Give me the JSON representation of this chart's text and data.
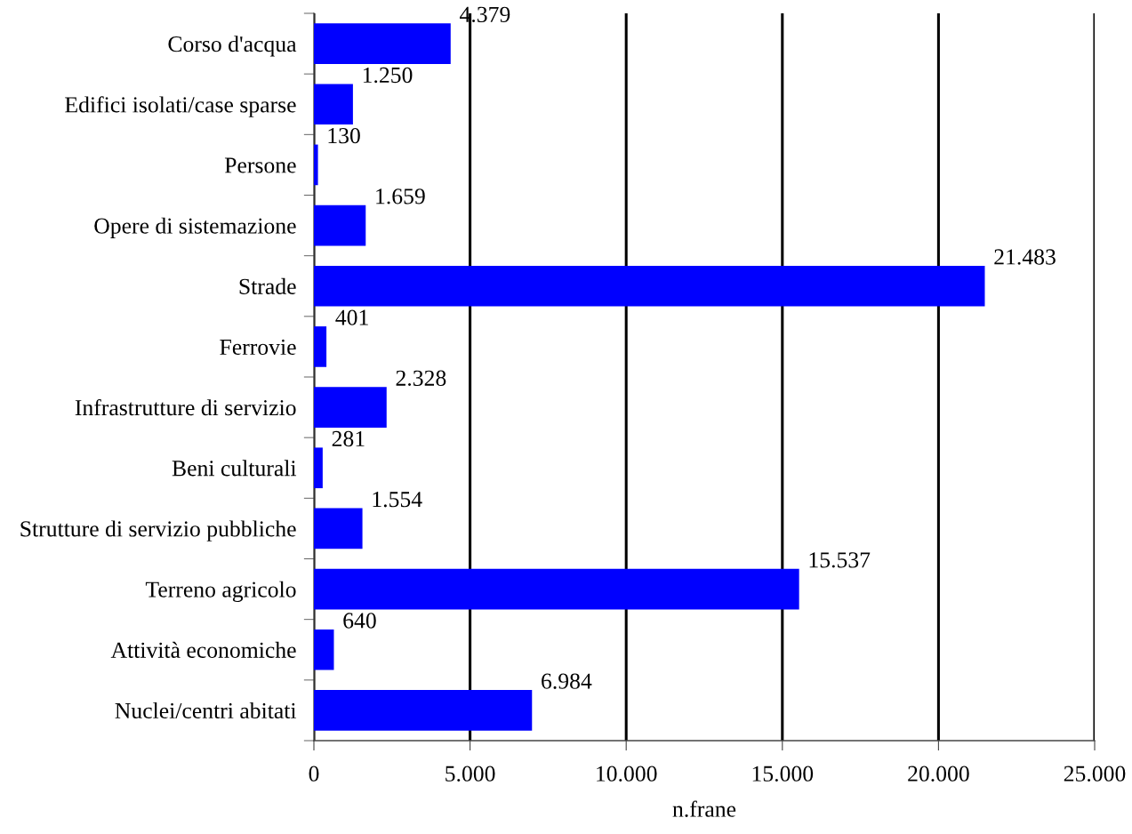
{
  "chart_data": {
    "type": "bar",
    "orientation": "horizontal",
    "categories": [
      "Corso d'acqua",
      "Edifici isolati/case sparse",
      "Persone",
      "Opere di sistemazione",
      "Strade",
      "Ferrovie",
      "Infrastrutture di servizio",
      "Beni culturali",
      "Strutture di servizio pubbliche",
      "Terreno agricolo",
      "Attività economiche",
      "Nuclei/centri abitati"
    ],
    "values": [
      4379,
      1250,
      130,
      1659,
      21483,
      401,
      2328,
      281,
      1554,
      15537,
      640,
      6984
    ],
    "value_labels": [
      "4.379",
      "1.250",
      "130",
      "1.659",
      "21.483",
      "401",
      "2.328",
      "281",
      "1.554",
      "15.537",
      "640",
      "6.984"
    ],
    "color": "#0000ff",
    "xlabel": "n.frane",
    "xlim": [
      0,
      25000
    ],
    "xticks": [
      0,
      {
        "value": 5000,
        "label": "5.000"
      },
      {
        "value": 10000,
        "label": "10.000"
      },
      {
        "value": 15000,
        "label": "15.000"
      },
      {
        "value": 20000,
        "label": "20.000"
      },
      {
        "value": 25000,
        "label": "25.000"
      }
    ],
    "grid": "x"
  }
}
